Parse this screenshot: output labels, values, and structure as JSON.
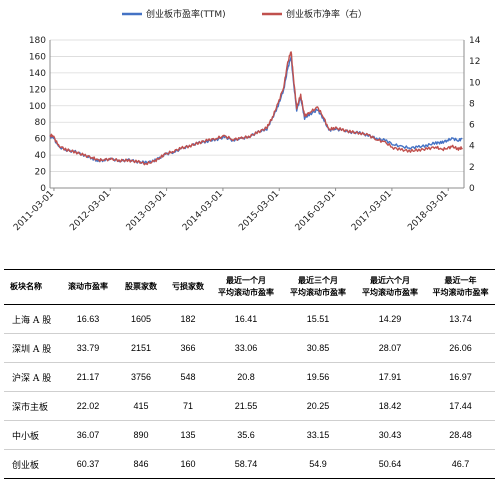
{
  "chart_data": {
    "type": "line",
    "legend_placement": "top",
    "grid": true,
    "y_left": {
      "min": 0,
      "max": 180,
      "ticks": [
        0,
        20,
        40,
        60,
        80,
        100,
        120,
        140,
        160,
        180
      ]
    },
    "y_right": {
      "min": 0,
      "max": 14,
      "ticks": [
        0,
        2,
        4,
        6,
        8,
        10,
        12,
        14
      ]
    },
    "x_ticks": [
      "2011-03-01",
      "2012-03-01",
      "2013-03-01",
      "2014-03-01",
      "2015-03-01",
      "2016-03-01",
      "2017-03-01",
      "2018-03-01"
    ],
    "x_tick_values": [
      2011.17,
      2012.17,
      2013.17,
      2014.17,
      2015.17,
      2016.17,
      2017.17,
      2018.17
    ],
    "x_range": [
      2011.1,
      2018.45
    ],
    "series": [
      {
        "name": "创业板市盈率(TTM)",
        "axis": "left",
        "color": "#4472c4",
        "points": [
          [
            2011.1,
            62
          ],
          [
            2011.15,
            63
          ],
          [
            2011.25,
            50
          ],
          [
            2011.4,
            46
          ],
          [
            2011.55,
            44
          ],
          [
            2011.7,
            40
          ],
          [
            2011.85,
            36
          ],
          [
            2011.95,
            33
          ],
          [
            2012.05,
            34
          ],
          [
            2012.2,
            35
          ],
          [
            2012.35,
            33
          ],
          [
            2012.5,
            34
          ],
          [
            2012.65,
            32
          ],
          [
            2012.8,
            31
          ],
          [
            2012.95,
            33
          ],
          [
            2013.05,
            37
          ],
          [
            2013.15,
            41
          ],
          [
            2013.3,
            44
          ],
          [
            2013.45,
            48
          ],
          [
            2013.6,
            52
          ],
          [
            2013.75,
            55
          ],
          [
            2013.9,
            57
          ],
          [
            2014.05,
            59
          ],
          [
            2014.2,
            62
          ],
          [
            2014.35,
            58
          ],
          [
            2014.5,
            60
          ],
          [
            2014.65,
            63
          ],
          [
            2014.8,
            68
          ],
          [
            2014.95,
            72
          ],
          [
            2015.05,
            85
          ],
          [
            2015.15,
            100
          ],
          [
            2015.25,
            120
          ],
          [
            2015.32,
            145
          ],
          [
            2015.38,
            160
          ],
          [
            2015.42,
            130
          ],
          [
            2015.48,
            95
          ],
          [
            2015.55,
            110
          ],
          [
            2015.62,
            85
          ],
          [
            2015.72,
            90
          ],
          [
            2015.85,
            95
          ],
          [
            2015.95,
            85
          ],
          [
            2016.05,
            70
          ],
          [
            2016.15,
            72
          ],
          [
            2016.3,
            70
          ],
          [
            2016.45,
            68
          ],
          [
            2016.6,
            67
          ],
          [
            2016.75,
            64
          ],
          [
            2016.9,
            60
          ],
          [
            2017.05,
            58
          ],
          [
            2017.2,
            53
          ],
          [
            2017.35,
            50
          ],
          [
            2017.5,
            49
          ],
          [
            2017.65,
            50
          ],
          [
            2017.8,
            52
          ],
          [
            2017.95,
            55
          ],
          [
            2018.05,
            55
          ],
          [
            2018.15,
            58
          ],
          [
            2018.25,
            60
          ],
          [
            2018.35,
            58
          ],
          [
            2018.42,
            60
          ]
        ]
      },
      {
        "name": "创业板市净率（右）",
        "axis": "right",
        "color": "#c0504d",
        "points": [
          [
            2011.1,
            4.9
          ],
          [
            2011.15,
            5.0
          ],
          [
            2011.25,
            4.0
          ],
          [
            2011.4,
            3.6
          ],
          [
            2011.55,
            3.4
          ],
          [
            2011.7,
            3.1
          ],
          [
            2011.85,
            2.9
          ],
          [
            2011.95,
            2.6
          ],
          [
            2012.05,
            2.7
          ],
          [
            2012.2,
            2.7
          ],
          [
            2012.35,
            2.6
          ],
          [
            2012.5,
            2.6
          ],
          [
            2012.65,
            2.5
          ],
          [
            2012.8,
            2.3
          ],
          [
            2012.95,
            2.5
          ],
          [
            2013.05,
            2.9
          ],
          [
            2013.15,
            3.2
          ],
          [
            2013.3,
            3.5
          ],
          [
            2013.45,
            3.8
          ],
          [
            2013.6,
            4.0
          ],
          [
            2013.75,
            4.3
          ],
          [
            2013.9,
            4.5
          ],
          [
            2014.05,
            4.7
          ],
          [
            2014.2,
            4.9
          ],
          [
            2014.35,
            4.6
          ],
          [
            2014.5,
            4.7
          ],
          [
            2014.65,
            4.9
          ],
          [
            2014.8,
            5.3
          ],
          [
            2014.95,
            5.7
          ],
          [
            2015.05,
            6.7
          ],
          [
            2015.15,
            8.0
          ],
          [
            2015.25,
            9.6
          ],
          [
            2015.32,
            11.8
          ],
          [
            2015.38,
            13.0
          ],
          [
            2015.42,
            10.5
          ],
          [
            2015.48,
            7.6
          ],
          [
            2015.55,
            8.8
          ],
          [
            2015.62,
            6.8
          ],
          [
            2015.72,
            7.2
          ],
          [
            2015.85,
            7.6
          ],
          [
            2015.95,
            6.8
          ],
          [
            2016.05,
            5.5
          ],
          [
            2016.15,
            5.7
          ],
          [
            2016.3,
            5.5
          ],
          [
            2016.45,
            5.3
          ],
          [
            2016.6,
            5.2
          ],
          [
            2016.75,
            5.0
          ],
          [
            2016.9,
            4.6
          ],
          [
            2017.05,
            4.3
          ],
          [
            2017.2,
            3.8
          ],
          [
            2017.35,
            3.6
          ],
          [
            2017.5,
            3.5
          ],
          [
            2017.65,
            3.6
          ],
          [
            2017.8,
            3.7
          ],
          [
            2017.95,
            3.9
          ],
          [
            2018.05,
            3.6
          ],
          [
            2018.15,
            3.8
          ],
          [
            2018.25,
            3.9
          ],
          [
            2018.35,
            3.7
          ],
          [
            2018.42,
            3.8
          ]
        ]
      }
    ]
  },
  "table": {
    "headers": [
      "板块名称",
      "滚动市盈率",
      "股票家数",
      "亏损家数",
      "最近一个月平均滚动市盈率",
      "最近三个月平均滚动市盈率",
      "最近六个月平均滚动市盈率",
      "最近一年平均滚动市盈率"
    ],
    "header_lines": [
      [
        "板块名称"
      ],
      [
        "滚动市盈率"
      ],
      [
        "股票家数"
      ],
      [
        "亏损家数"
      ],
      [
        "最近一个月",
        "平均滚动市盈率"
      ],
      [
        "最近三个月",
        "平均滚动市盈率"
      ],
      [
        "最近六个月",
        "平均滚动市盈率"
      ],
      [
        "最近一年",
        "平均滚动市盈率"
      ]
    ],
    "rows": [
      [
        "上海 A 股",
        "16.63",
        "1605",
        "182",
        "16.41",
        "15.51",
        "14.29",
        "13.74"
      ],
      [
        "深圳 A 股",
        "33.79",
        "2151",
        "366",
        "33.06",
        "30.85",
        "28.07",
        "26.06"
      ],
      [
        "沪深 A 股",
        "21.17",
        "3756",
        "548",
        "20.8",
        "19.56",
        "17.91",
        "16.97"
      ],
      [
        "深市主板",
        "22.02",
        "415",
        "71",
        "21.55",
        "20.25",
        "18.42",
        "17.44"
      ],
      [
        "中小板",
        "36.07",
        "890",
        "135",
        "35.6",
        "33.15",
        "30.43",
        "28.48"
      ],
      [
        "创业板",
        "60.37",
        "846",
        "160",
        "58.74",
        "54.9",
        "50.64",
        "46.7"
      ]
    ]
  }
}
